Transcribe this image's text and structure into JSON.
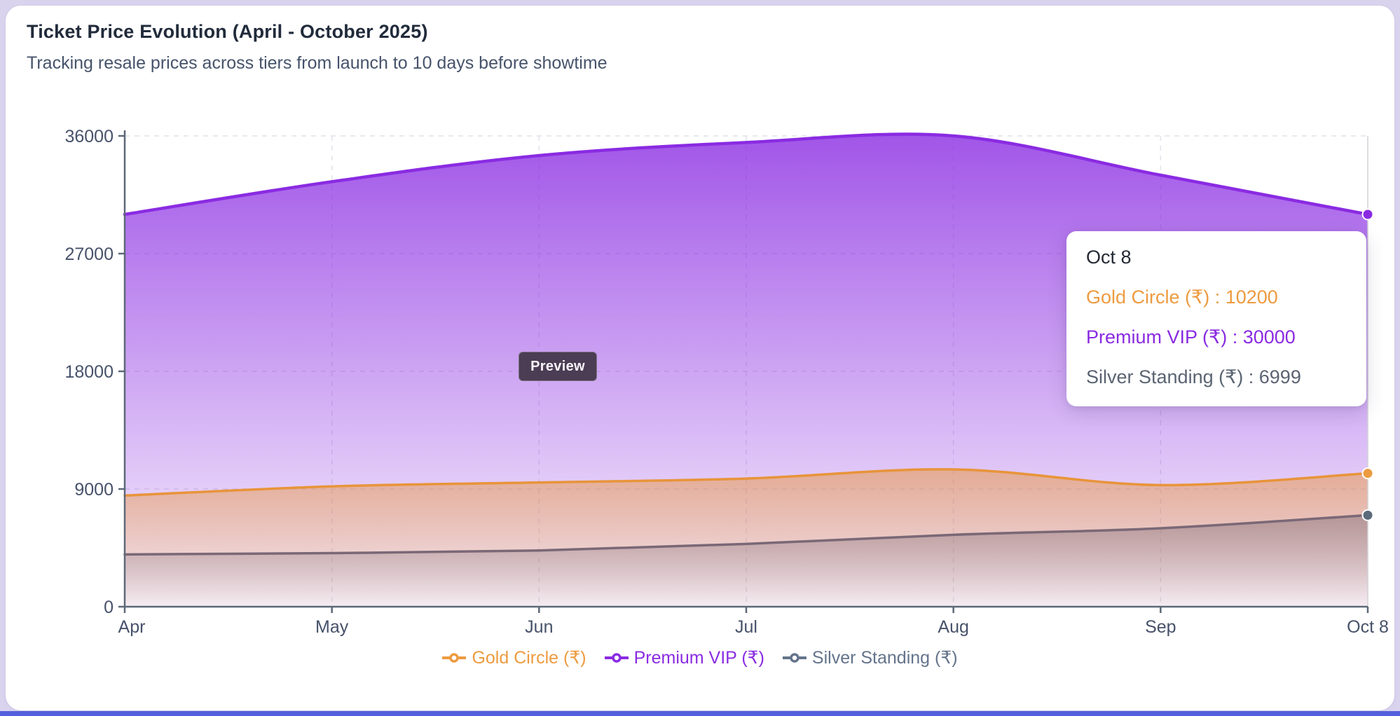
{
  "page": {
    "title": "Ticket Price Evolution (April - October 2025)",
    "subtitle": "Tracking resale prices across tiers from launch to 10 days before showtime"
  },
  "preview_badge": "Preview",
  "chart_data": {
    "type": "area",
    "x": [
      "Apr",
      "May",
      "Jun",
      "Jul",
      "Aug",
      "Sep",
      "Oct 8"
    ],
    "series": [
      {
        "name": "Gold Circle (₹)",
        "color": "#ED9B40",
        "line_color": "#E8943A",
        "marker_color": "#ED9B40",
        "values": [
          8500,
          9200,
          9500,
          9800,
          10500,
          9300,
          10200
        ]
      },
      {
        "name": "Premium VIP (₹)",
        "color": "#8A2BE2",
        "line_color": "#8A2BE2",
        "marker_color": "#8A2BE2",
        "values": [
          30000,
          32500,
          34500,
          35500,
          36000,
          33000,
          30000
        ]
      },
      {
        "name": "Silver Standing (₹)",
        "color": "#64748B",
        "line_color": "#7A6876",
        "marker_color": "#5C6B7A",
        "values": [
          3999,
          4100,
          4300,
          4800,
          5500,
          6000,
          6999
        ]
      }
    ],
    "ylim": [
      0,
      36000
    ],
    "yticks": [
      0,
      9000,
      18000,
      27000,
      36000
    ],
    "grid": true,
    "legend_position": "bottom",
    "highlight_x": "Oct 8"
  },
  "tooltip": {
    "title": "Oct 8",
    "separator": " : ",
    "rows": [
      {
        "label": "Gold Circle (₹)",
        "value": "10200",
        "color": "#ED9B40"
      },
      {
        "label": "Premium VIP (₹)",
        "value": "30000",
        "color": "#8A2BE2"
      },
      {
        "label": "Silver Standing (₹)",
        "value": "6999",
        "color": "#5B6472"
      }
    ]
  }
}
